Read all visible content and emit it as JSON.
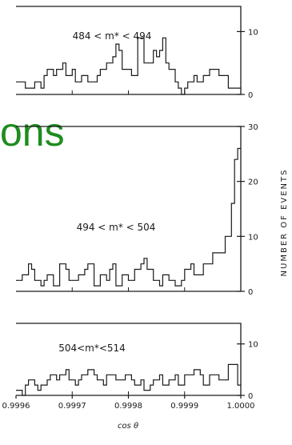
{
  "overlay_text": "ons",
  "overlay_color": "#1f8c1f",
  "y_axis_title": "NUMBER OF EVENTS",
  "x_axis_title": "cos θ",
  "chart_data": {
    "type": "bar",
    "x_ticks": [
      "0.9996",
      "0.9997",
      "0.9998",
      "0.9999",
      "1.0000"
    ],
    "xlim": [
      0.9996,
      1.0
    ],
    "panels": [
      {
        "label": "484 < m* < 494",
        "ylim": [
          0,
          14
        ],
        "yticks": [
          "0",
          "10"
        ],
        "values": [
          2,
          2,
          2,
          1,
          1,
          1,
          2,
          2,
          1,
          3,
          4,
          4,
          3,
          4,
          4,
          5,
          3,
          3,
          4,
          2,
          2,
          3,
          3,
          2,
          2,
          2,
          3,
          4,
          4,
          5,
          5,
          6,
          8,
          7,
          4,
          4,
          4,
          3,
          3,
          9,
          9,
          5,
          5,
          5,
          7,
          6,
          7,
          9,
          5,
          4,
          4,
          2,
          1,
          0,
          1,
          2,
          2,
          3,
          2,
          2,
          3,
          3,
          4,
          4,
          4,
          3,
          3,
          3,
          1,
          1,
          1,
          1
        ]
      },
      {
        "label": "494 < m* < 504",
        "ylim": [
          0,
          30
        ],
        "yticks": [
          "0",
          "10",
          "20",
          "30"
        ],
        "values": [
          2,
          2,
          3,
          3,
          5,
          4,
          2,
          2,
          1,
          2,
          3,
          3,
          1,
          1,
          5,
          5,
          4,
          2,
          2,
          2,
          3,
          3,
          4,
          5,
          5,
          1,
          1,
          3,
          3,
          2,
          4,
          5,
          1,
          1,
          3,
          3,
          2,
          2,
          4,
          4,
          5,
          6,
          4,
          4,
          2,
          2,
          1,
          3,
          3,
          2,
          2,
          1,
          1,
          2,
          4,
          4,
          5,
          3,
          3,
          3,
          5,
          5,
          5,
          7,
          7,
          7,
          7,
          10,
          10,
          16,
          24,
          26
        ]
      },
      {
        "label": "504<m*<514",
        "ylim": [
          0,
          14
        ],
        "yticks": [
          "0",
          "10"
        ],
        "values": [
          1,
          1,
          0,
          2,
          3,
          3,
          2,
          1,
          2,
          2,
          3,
          4,
          4,
          3,
          4,
          4,
          5,
          3,
          3,
          2,
          3,
          4,
          4,
          5,
          5,
          4,
          3,
          3,
          2,
          4,
          4,
          4,
          3,
          3,
          3,
          4,
          4,
          3,
          2,
          2,
          3,
          1,
          1,
          2,
          3,
          3,
          4,
          2,
          2,
          3,
          3,
          4,
          2,
          2,
          4,
          4,
          4,
          5,
          5,
          4,
          2,
          2,
          4,
          4,
          4,
          3,
          3,
          3,
          6,
          6,
          6,
          2
        ]
      }
    ]
  }
}
